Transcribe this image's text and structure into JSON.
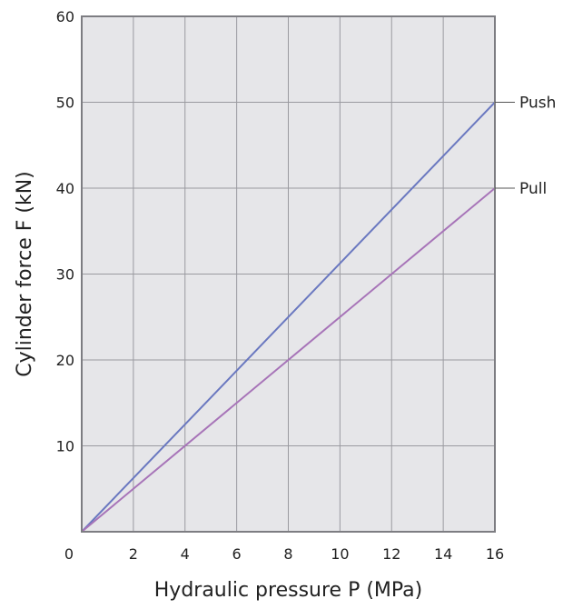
{
  "chart_data": {
    "type": "line",
    "title": "",
    "xlabel": "Hydraulic pressure P (MPa)",
    "ylabel": "Cylinder force F (kN)",
    "xlim": [
      0,
      16
    ],
    "ylim": [
      0,
      60
    ],
    "xticks": [
      0,
      2,
      4,
      6,
      8,
      10,
      12,
      14,
      16
    ],
    "yticks": [
      10,
      20,
      30,
      40,
      50,
      60
    ],
    "x_origin_label": "0",
    "grid": true,
    "legend": "labels at right end of lines",
    "background_color": "#e6e6e9",
    "series": [
      {
        "name": "Push",
        "x": [
          0,
          16
        ],
        "y": [
          0,
          50
        ],
        "color": "#6a78c0"
      },
      {
        "name": "Pull",
        "x": [
          0,
          16
        ],
        "y": [
          0,
          40
        ],
        "color": "#a774b8"
      }
    ]
  }
}
